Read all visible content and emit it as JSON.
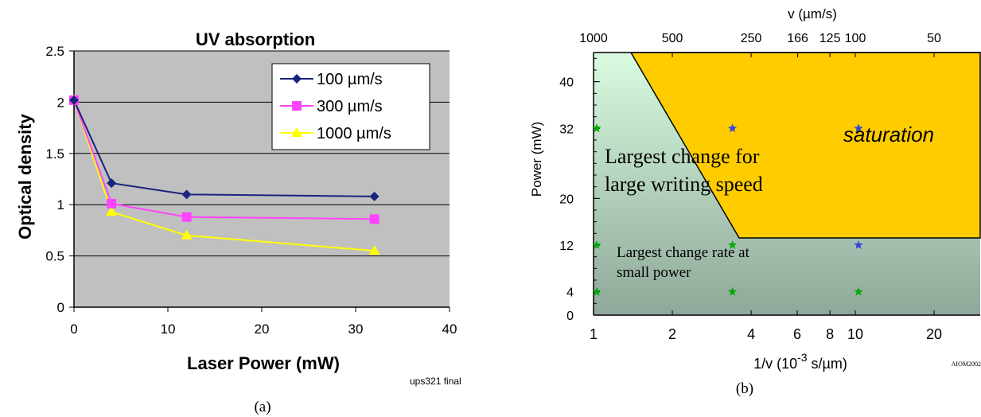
{
  "chart_data": [
    {
      "type": "line",
      "title": "UV absorption",
      "xlabel": "Laser Power (mW)",
      "ylabel": "Optical density",
      "xlim": [
        0,
        40
      ],
      "ylim": [
        0,
        2.5
      ],
      "xticks": [
        "0",
        "10",
        "20",
        "30",
        "40"
      ],
      "yticks": [
        "0",
        "0.5",
        "1",
        "1.5",
        "2",
        "2.5"
      ],
      "grid": true,
      "legend_position": "top-right",
      "note": "ups321 final",
      "caption": "(a)",
      "background": "#c0c0c0",
      "x": [
        0,
        4,
        12,
        32
      ],
      "series": [
        {
          "name": "100 µm/s",
          "values": [
            2.02,
            1.21,
            1.1,
            1.08
          ],
          "color": "#1a237e",
          "marker": "diamond"
        },
        {
          "name": "300 µm/s",
          "values": [
            2.02,
            1.01,
            0.88,
            0.86
          ],
          "color": "#ff44ff",
          "marker": "square"
        },
        {
          "name": "1000 µm/s",
          "values": [
            2.02,
            0.93,
            0.7,
            0.55
          ],
          "color": "#ffff00",
          "marker": "triangle"
        }
      ]
    },
    {
      "type": "scatter",
      "xscale": "log",
      "xlabel_pre": "1/v (10",
      "xlabel_sup": "-3",
      "xlabel_post": " s/µm)",
      "ylabel": "Power (mW)",
      "top_axis_label": "v (µm/s)",
      "xlim": [
        1,
        30
      ],
      "ylim": [
        0,
        45
      ],
      "xticks": [
        "1",
        "2",
        "4",
        "6",
        "8",
        "10",
        "20"
      ],
      "top_ticks": [
        "1000",
        "500",
        "250",
        "166",
        "125",
        "100",
        "50"
      ],
      "yticks": [
        "0",
        "4",
        "12",
        "20",
        "32",
        "40"
      ],
      "caption": "(b)",
      "corner_note": "AIOM2002",
      "region_label": "saturation",
      "annotations": [
        "Largest change for",
        "large writing speed",
        "Largest change rate at",
        "small power"
      ],
      "saturation_color": "#ffcc00",
      "points": [
        {
          "x": 1,
          "y": 32,
          "color": "#00aa00"
        },
        {
          "x": 1,
          "y": 12,
          "color": "#00aa00"
        },
        {
          "x": 1,
          "y": 4,
          "color": "#00aa00"
        },
        {
          "x": 3.3,
          "y": 32,
          "color": "#3344dd"
        },
        {
          "x": 3.3,
          "y": 12,
          "color": "#00aa00"
        },
        {
          "x": 3.3,
          "y": 4,
          "color": "#00aa00"
        },
        {
          "x": 10,
          "y": 32,
          "color": "#3344dd"
        },
        {
          "x": 10,
          "y": 12,
          "color": "#3344dd"
        },
        {
          "x": 10,
          "y": 4,
          "color": "#00aa00"
        }
      ]
    }
  ]
}
